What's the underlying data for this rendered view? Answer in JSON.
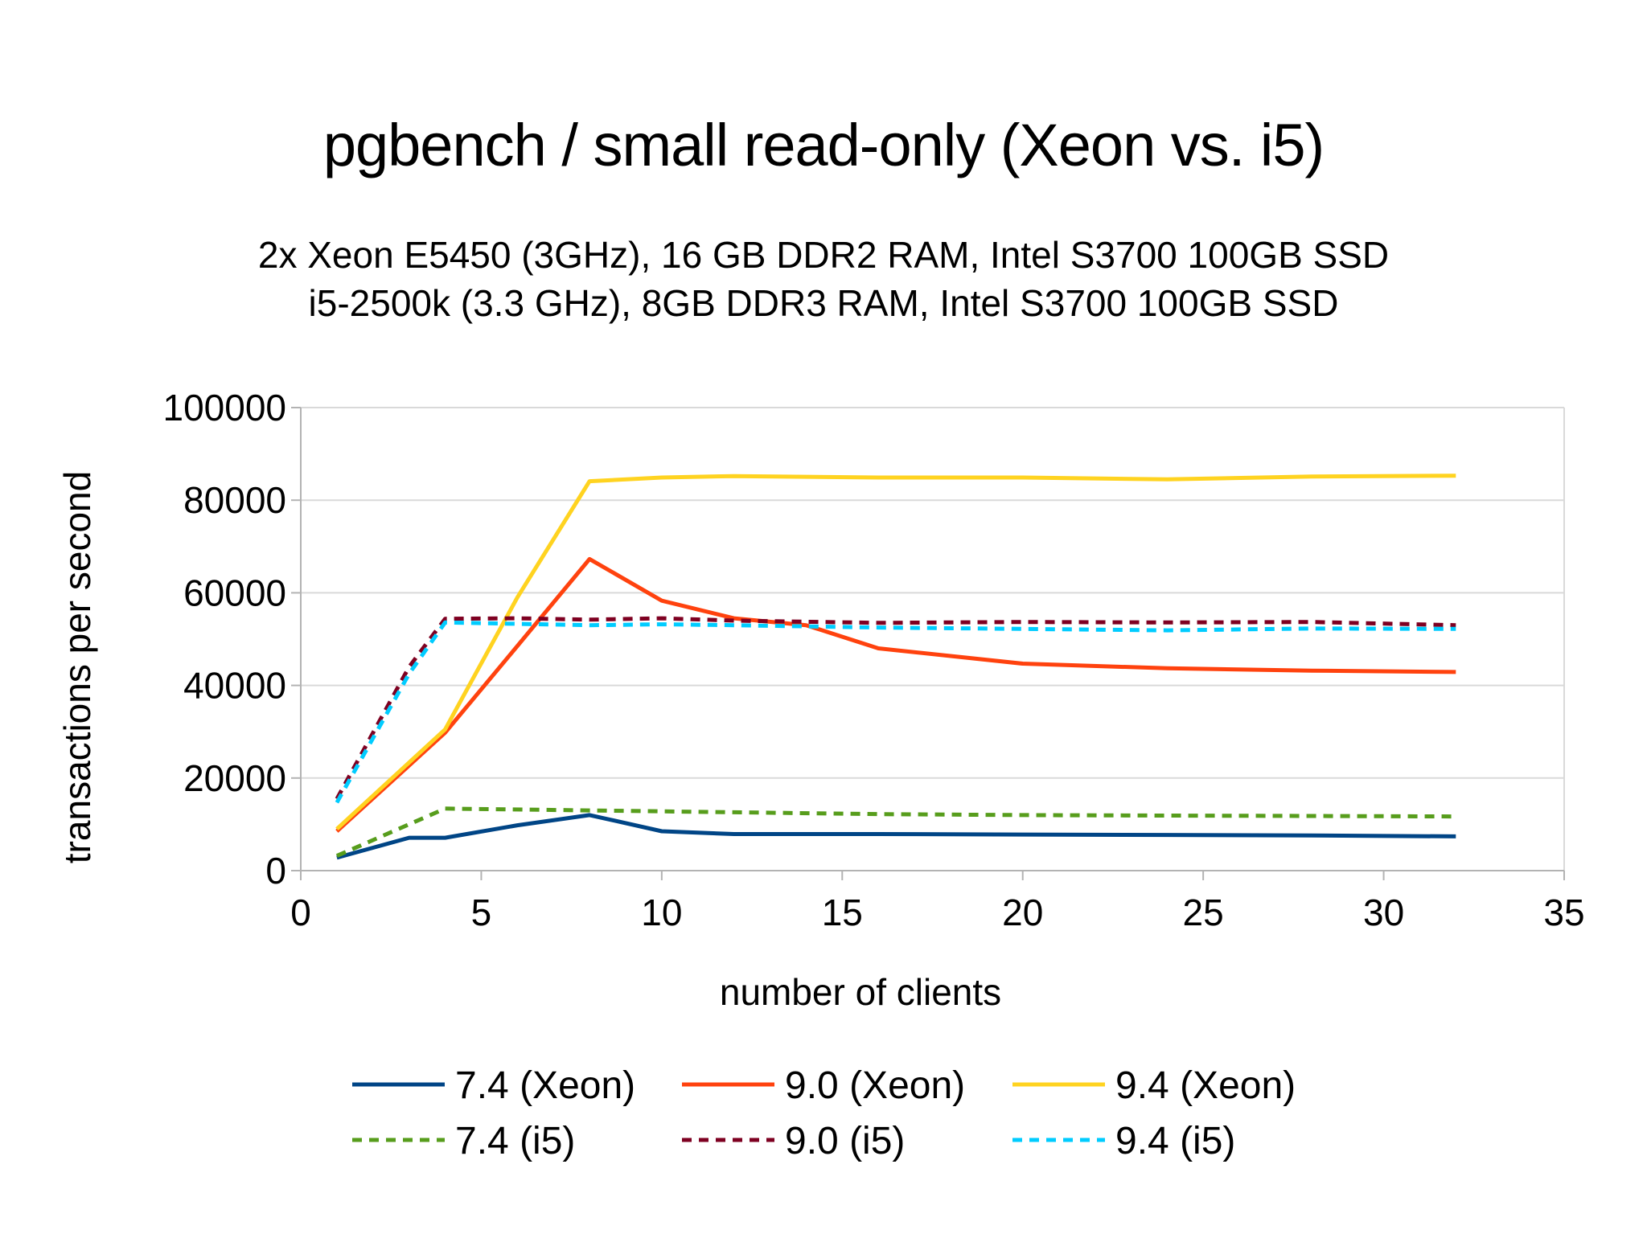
{
  "chart_data": {
    "type": "line",
    "title": "pgbench / small read-only (Xeon vs. i5)",
    "subtitle": [
      "2x Xeon E5450 (3GHz), 16 GB DDR2 RAM, Intel S3700 100GB SSD",
      "i5-2500k (3.3 GHz), 8GB DDR3 RAM, Intel S3700 100GB SSD"
    ],
    "xlabel": "number of clients",
    "ylabel": "transactions per second",
    "xlim": [
      0,
      35
    ],
    "ylim": [
      0,
      100000
    ],
    "xticks": [
      0,
      5,
      10,
      15,
      20,
      25,
      30,
      35
    ],
    "yticks": [
      0,
      20000,
      40000,
      60000,
      80000,
      100000
    ],
    "x_tick_labels": [
      "0",
      "5",
      "10",
      "15",
      "20",
      "25",
      "30",
      "35"
    ],
    "y_tick_labels": [
      "0",
      "20000",
      "40000",
      "60000",
      "80000",
      "100000"
    ],
    "grid": "horizontal",
    "legend_position": "bottom",
    "series": [
      {
        "name": "7.4 (Xeon)",
        "color": "#004586",
        "style": "solid",
        "points": [
          [
            1,
            2800
          ],
          [
            3,
            7100
          ],
          [
            4,
            7100
          ],
          [
            6,
            9800
          ],
          [
            8,
            12000
          ],
          [
            10,
            8500
          ],
          [
            12,
            7900
          ],
          [
            16,
            7900
          ],
          [
            20,
            7800
          ],
          [
            24,
            7700
          ],
          [
            28,
            7600
          ],
          [
            32,
            7400
          ]
        ]
      },
      {
        "name": "9.0 (Xeon)",
        "color": "#ff420e",
        "style": "solid",
        "points": [
          [
            1,
            8500
          ],
          [
            4,
            29800
          ],
          [
            6,
            48500
          ],
          [
            8,
            67300
          ],
          [
            10,
            58300
          ],
          [
            12,
            54500
          ],
          [
            14,
            53000
          ],
          [
            16,
            48000
          ],
          [
            20,
            44700
          ],
          [
            24,
            43700
          ],
          [
            28,
            43200
          ],
          [
            32,
            42900
          ]
        ]
      },
      {
        "name": "9.4 (Xeon)",
        "color": "#ffd320",
        "style": "solid",
        "points": [
          [
            1,
            9000
          ],
          [
            4,
            30500
          ],
          [
            6,
            59000
          ],
          [
            8,
            84100
          ],
          [
            10,
            84900
          ],
          [
            12,
            85200
          ],
          [
            16,
            84900
          ],
          [
            20,
            84900
          ],
          [
            24,
            84500
          ],
          [
            28,
            85100
          ],
          [
            32,
            85300
          ]
        ]
      },
      {
        "name": "7.4 (i5)",
        "color": "#579d1c",
        "style": "dashed",
        "points": [
          [
            1,
            3200
          ],
          [
            3,
            10000
          ],
          [
            4,
            13400
          ],
          [
            8,
            13000
          ],
          [
            12,
            12600
          ],
          [
            16,
            12200
          ],
          [
            20,
            12000
          ],
          [
            24,
            11900
          ],
          [
            28,
            11800
          ],
          [
            32,
            11700
          ]
        ]
      },
      {
        "name": "9.0 (i5)",
        "color": "#7e0021",
        "style": "dashed",
        "points": [
          [
            1,
            15500
          ],
          [
            3,
            44000
          ],
          [
            4,
            54400
          ],
          [
            6,
            54500
          ],
          [
            8,
            54200
          ],
          [
            10,
            54500
          ],
          [
            12,
            54000
          ],
          [
            16,
            53500
          ],
          [
            20,
            53700
          ],
          [
            24,
            53600
          ],
          [
            28,
            53700
          ],
          [
            32,
            53000
          ]
        ]
      },
      {
        "name": "9.4 (i5)",
        "color": "#00ccff",
        "style": "dashed",
        "points": [
          [
            1,
            14700
          ],
          [
            3,
            42500
          ],
          [
            4,
            53600
          ],
          [
            6,
            53300
          ],
          [
            8,
            53000
          ],
          [
            10,
            53200
          ],
          [
            12,
            53000
          ],
          [
            16,
            52500
          ],
          [
            20,
            52200
          ],
          [
            24,
            51900
          ],
          [
            28,
            52300
          ],
          [
            32,
            52200
          ]
        ]
      }
    ]
  }
}
